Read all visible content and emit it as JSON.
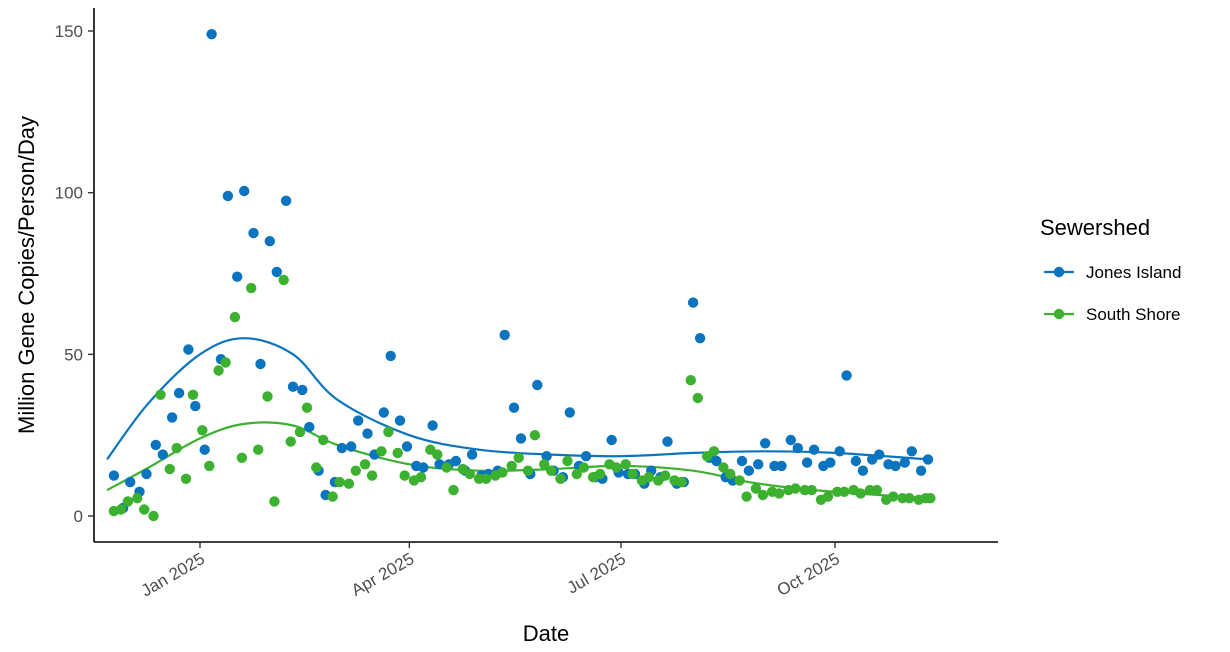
{
  "chart_data": {
    "type": "scatter",
    "title": "",
    "xlabel": "Date",
    "ylabel": "Million Gene Copies/Person/Day",
    "xaxis_type": "date",
    "xlim": [
      "2024-11-15",
      "2025-11-30"
    ],
    "ylim": [
      0,
      150
    ],
    "y_ticks": [
      0,
      50,
      100,
      150
    ],
    "x_ticks": [
      {
        "date": "2025-01-01",
        "label": "Jan 2025"
      },
      {
        "date": "2025-04-01",
        "label": "Apr 2025"
      },
      {
        "date": "2025-07-01",
        "label": "Jul 2025"
      },
      {
        "date": "2025-10-01",
        "label": "Oct 2025"
      }
    ],
    "grid": false,
    "legend": {
      "title": "Sewershed",
      "position": "right"
    },
    "trend": "smoothed line per series",
    "series": [
      {
        "name": "Jones Island",
        "color": "#0a74be",
        "points": [
          [
            "2024-11-25",
            12.5
          ],
          [
            "2024-11-29",
            2.5
          ],
          [
            "2024-12-02",
            10.5
          ],
          [
            "2024-12-06",
            7.5
          ],
          [
            "2024-12-09",
            13
          ],
          [
            "2024-12-13",
            22
          ],
          [
            "2024-12-16",
            19
          ],
          [
            "2024-12-20",
            30.5
          ],
          [
            "2024-12-23",
            38
          ],
          [
            "2024-12-27",
            51.5
          ],
          [
            "2024-12-30",
            34
          ],
          [
            "2025-01-03",
            20.5
          ],
          [
            "2025-01-06",
            149
          ],
          [
            "2025-01-10",
            48.5
          ],
          [
            "2025-01-13",
            99
          ],
          [
            "2025-01-17",
            74
          ],
          [
            "2025-01-20",
            100.5
          ],
          [
            "2025-01-24",
            87.5
          ],
          [
            "2025-01-27",
            47
          ],
          [
            "2025-01-31",
            85
          ],
          [
            "2025-02-03",
            75.5
          ],
          [
            "2025-02-07",
            97.5
          ],
          [
            "2025-02-10",
            40
          ],
          [
            "2025-02-14",
            39
          ],
          [
            "2025-02-17",
            27.5
          ],
          [
            "2025-02-21",
            14
          ],
          [
            "2025-02-24",
            6.5
          ],
          [
            "2025-02-28",
            10.5
          ],
          [
            "2025-03-03",
            21
          ],
          [
            "2025-03-07",
            21.5
          ],
          [
            "2025-03-10",
            29.5
          ],
          [
            "2025-03-14",
            25.5
          ],
          [
            "2025-03-17",
            19
          ],
          [
            "2025-03-21",
            32
          ],
          [
            "2025-03-24",
            49.5
          ],
          [
            "2025-03-28",
            29.5
          ],
          [
            "2025-03-31",
            21.5
          ],
          [
            "2025-04-04",
            15.5
          ],
          [
            "2025-04-07",
            15
          ],
          [
            "2025-04-11",
            28
          ],
          [
            "2025-04-14",
            16
          ],
          [
            "2025-04-18",
            16
          ],
          [
            "2025-04-21",
            17
          ],
          [
            "2025-04-25",
            14
          ],
          [
            "2025-04-28",
            19
          ],
          [
            "2025-05-02",
            12.5
          ],
          [
            "2025-05-05",
            13
          ],
          [
            "2025-05-09",
            14
          ],
          [
            "2025-05-12",
            56
          ],
          [
            "2025-05-16",
            33.5
          ],
          [
            "2025-05-19",
            24
          ],
          [
            "2025-05-23",
            13
          ],
          [
            "2025-05-26",
            40.5
          ],
          [
            "2025-05-30",
            18.5
          ],
          [
            "2025-06-02",
            14
          ],
          [
            "2025-06-06",
            12
          ],
          [
            "2025-06-09",
            32
          ],
          [
            "2025-06-13",
            15.5
          ],
          [
            "2025-06-16",
            18.5
          ],
          [
            "2025-06-20",
            12
          ],
          [
            "2025-06-23",
            11.5
          ],
          [
            "2025-06-27",
            23.5
          ],
          [
            "2025-06-30",
            13.5
          ],
          [
            "2025-07-04",
            13
          ],
          [
            "2025-07-07",
            13
          ],
          [
            "2025-07-11",
            10
          ],
          [
            "2025-07-14",
            14
          ],
          [
            "2025-07-18",
            12
          ],
          [
            "2025-07-21",
            23
          ],
          [
            "2025-07-25",
            10
          ],
          [
            "2025-07-28",
            10.5
          ],
          [
            "2025-08-01",
            66
          ],
          [
            "2025-08-04",
            55
          ],
          [
            "2025-08-08",
            18
          ],
          [
            "2025-08-11",
            17
          ],
          [
            "2025-08-15",
            12
          ],
          [
            "2025-08-18",
            11
          ],
          [
            "2025-08-22",
            17
          ],
          [
            "2025-08-25",
            14
          ],
          [
            "2025-08-29",
            16
          ],
          [
            "2025-09-01",
            22.5
          ],
          [
            "2025-09-05",
            15.5
          ],
          [
            "2025-09-08",
            15.5
          ],
          [
            "2025-09-12",
            23.5
          ],
          [
            "2025-09-15",
            21
          ],
          [
            "2025-09-19",
            16.5
          ],
          [
            "2025-09-22",
            20.5
          ],
          [
            "2025-09-26",
            15.5
          ],
          [
            "2025-09-29",
            16.5
          ],
          [
            "2025-10-03",
            20
          ],
          [
            "2025-10-06",
            43.5
          ],
          [
            "2025-10-10",
            17
          ],
          [
            "2025-10-13",
            14
          ],
          [
            "2025-10-17",
            17.5
          ],
          [
            "2025-10-20",
            19
          ],
          [
            "2025-10-24",
            16
          ],
          [
            "2025-10-27",
            15.5
          ],
          [
            "2025-10-31",
            16.5
          ],
          [
            "2025-11-03",
            20
          ],
          [
            "2025-11-07",
            14
          ],
          [
            "2025-11-10",
            17.5
          ]
        ],
        "trend": [
          [
            "2024-11-22",
            17.5
          ],
          [
            "2024-12-10",
            35
          ],
          [
            "2025-01-01",
            50
          ],
          [
            "2025-01-20",
            55
          ],
          [
            "2025-02-10",
            50
          ],
          [
            "2025-03-01",
            36
          ],
          [
            "2025-04-01",
            25
          ],
          [
            "2025-05-01",
            20.5
          ],
          [
            "2025-06-01",
            19
          ],
          [
            "2025-07-01",
            18.5
          ],
          [
            "2025-08-01",
            19.5
          ],
          [
            "2025-09-01",
            20
          ],
          [
            "2025-10-01",
            19.5
          ],
          [
            "2025-11-10",
            17.5
          ]
        ]
      },
      {
        "name": "South Shore",
        "color": "#3cb02f",
        "points": [
          [
            "2024-11-25",
            1.5
          ],
          [
            "2024-11-28",
            2
          ],
          [
            "2024-12-01",
            4.5
          ],
          [
            "2024-12-05",
            5.5
          ],
          [
            "2024-12-08",
            2
          ],
          [
            "2024-12-12",
            0
          ],
          [
            "2024-12-15",
            37.5
          ],
          [
            "2024-12-19",
            14.5
          ],
          [
            "2024-12-22",
            21
          ],
          [
            "2024-12-26",
            11.5
          ],
          [
            "2024-12-29",
            37.5
          ],
          [
            "2025-01-02",
            26.5
          ],
          [
            "2025-01-05",
            15.5
          ],
          [
            "2025-01-09",
            45
          ],
          [
            "2025-01-12",
            47.5
          ],
          [
            "2025-01-16",
            61.5
          ],
          [
            "2025-01-19",
            18
          ],
          [
            "2025-01-23",
            70.5
          ],
          [
            "2025-01-26",
            20.5
          ],
          [
            "2025-01-30",
            37
          ],
          [
            "2025-02-02",
            4.5
          ],
          [
            "2025-02-06",
            73
          ],
          [
            "2025-02-09",
            23
          ],
          [
            "2025-02-13",
            26
          ],
          [
            "2025-02-16",
            33.5
          ],
          [
            "2025-02-20",
            15
          ],
          [
            "2025-02-23",
            23.5
          ],
          [
            "2025-02-27",
            6
          ],
          [
            "2025-03-02",
            10.5
          ],
          [
            "2025-03-06",
            10
          ],
          [
            "2025-03-09",
            14
          ],
          [
            "2025-03-13",
            16
          ],
          [
            "2025-03-16",
            12.5
          ],
          [
            "2025-03-20",
            20
          ],
          [
            "2025-03-23",
            26
          ],
          [
            "2025-03-27",
            19.5
          ],
          [
            "2025-03-30",
            12.5
          ],
          [
            "2025-04-03",
            11
          ],
          [
            "2025-04-06",
            12
          ],
          [
            "2025-04-10",
            20.5
          ],
          [
            "2025-04-13",
            19
          ],
          [
            "2025-04-17",
            15
          ],
          [
            "2025-04-20",
            8
          ],
          [
            "2025-04-24",
            14.5
          ],
          [
            "2025-04-27",
            13
          ],
          [
            "2025-05-01",
            11.5
          ],
          [
            "2025-05-04",
            11.5
          ],
          [
            "2025-05-08",
            12.5
          ],
          [
            "2025-05-11",
            13.5
          ],
          [
            "2025-05-15",
            15.5
          ],
          [
            "2025-05-18",
            18
          ],
          [
            "2025-05-22",
            14
          ],
          [
            "2025-05-25",
            25
          ],
          [
            "2025-05-29",
            16
          ],
          [
            "2025-06-01",
            14
          ],
          [
            "2025-06-05",
            11.5
          ],
          [
            "2025-06-08",
            17
          ],
          [
            "2025-06-12",
            13
          ],
          [
            "2025-06-15",
            15
          ],
          [
            "2025-06-19",
            12
          ],
          [
            "2025-06-22",
            13
          ],
          [
            "2025-06-26",
            16
          ],
          [
            "2025-06-29",
            15
          ],
          [
            "2025-07-03",
            16
          ],
          [
            "2025-07-06",
            13
          ],
          [
            "2025-07-10",
            11
          ],
          [
            "2025-07-13",
            12
          ],
          [
            "2025-07-17",
            11
          ],
          [
            "2025-07-20",
            12.5
          ],
          [
            "2025-07-24",
            11
          ],
          [
            "2025-07-27",
            10.5
          ],
          [
            "2025-07-31",
            42
          ],
          [
            "2025-08-03",
            36.5
          ],
          [
            "2025-08-07",
            18.5
          ],
          [
            "2025-08-10",
            20
          ],
          [
            "2025-08-14",
            15
          ],
          [
            "2025-08-17",
            13
          ],
          [
            "2025-08-21",
            11
          ],
          [
            "2025-08-24",
            6
          ],
          [
            "2025-08-28",
            8.5
          ],
          [
            "2025-08-31",
            6.5
          ],
          [
            "2025-09-04",
            7.5
          ],
          [
            "2025-09-07",
            7
          ],
          [
            "2025-09-11",
            8
          ],
          [
            "2025-09-14",
            8.5
          ],
          [
            "2025-09-18",
            8
          ],
          [
            "2025-09-21",
            8
          ],
          [
            "2025-09-25",
            5
          ],
          [
            "2025-09-28",
            6
          ],
          [
            "2025-10-02",
            7.5
          ],
          [
            "2025-10-05",
            7.5
          ],
          [
            "2025-10-09",
            8
          ],
          [
            "2025-10-12",
            7
          ],
          [
            "2025-10-16",
            8
          ],
          [
            "2025-10-19",
            8
          ],
          [
            "2025-10-23",
            5
          ],
          [
            "2025-10-26",
            6
          ],
          [
            "2025-10-30",
            5.5
          ],
          [
            "2025-11-02",
            5.5
          ],
          [
            "2025-11-06",
            5
          ],
          [
            "2025-11-09",
            5.5
          ],
          [
            "2025-11-11",
            5.5
          ]
        ],
        "trend": [
          [
            "2024-11-22",
            8
          ],
          [
            "2024-12-10",
            15
          ],
          [
            "2025-01-01",
            24
          ],
          [
            "2025-01-20",
            28.5
          ],
          [
            "2025-02-10",
            28
          ],
          [
            "2025-03-01",
            22
          ],
          [
            "2025-04-01",
            16
          ],
          [
            "2025-05-01",
            14
          ],
          [
            "2025-06-01",
            14.5
          ],
          [
            "2025-07-01",
            15.5
          ],
          [
            "2025-08-01",
            14
          ],
          [
            "2025-08-25",
            10.5
          ],
          [
            "2025-09-15",
            8.5
          ],
          [
            "2025-10-10",
            7
          ],
          [
            "2025-11-10",
            5.5
          ]
        ]
      }
    ]
  }
}
